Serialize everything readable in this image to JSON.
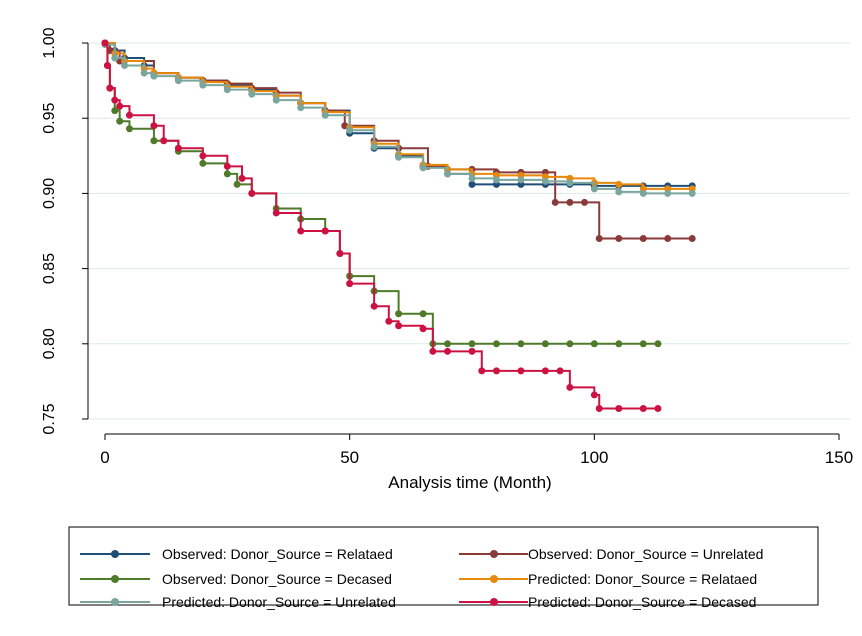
{
  "chart_data": {
    "type": "line",
    "title": "",
    "xlabel": "Analysis time (Month)",
    "ylabel": "",
    "xlim": [
      0,
      150
    ],
    "ylim": [
      0.75,
      1.0
    ],
    "x_ticks": [
      "0",
      "50",
      "100",
      "150"
    ],
    "y_ticks": [
      "0.75",
      "0.80",
      "0.85",
      "0.90",
      "0.95",
      "1.00"
    ],
    "grid": "horizontal",
    "legend_position": "bottom",
    "series": [
      {
        "name": "Observed: Donor_Source = Relataed",
        "color": "#1f4e79",
        "step": true,
        "x": [
          0,
          2,
          4,
          8,
          10,
          15,
          20,
          25,
          30,
          35,
          40,
          45,
          50,
          55,
          60,
          65,
          70,
          75,
          80,
          85,
          90,
          95,
          100,
          105,
          110,
          115,
          120
        ],
        "y": [
          1.0,
          0.995,
          0.99,
          0.985,
          0.98,
          0.977,
          0.975,
          0.972,
          0.969,
          0.965,
          0.96,
          0.955,
          0.94,
          0.93,
          0.925,
          0.918,
          0.913,
          0.906,
          0.906,
          0.906,
          0.906,
          0.906,
          0.905,
          0.905,
          0.905,
          0.905,
          0.905
        ]
      },
      {
        "name": "Observed: Donor_Source = Unrelated",
        "color": "#8b3a3a",
        "step": true,
        "x": [
          0,
          1,
          3,
          10,
          15,
          20,
          25,
          30,
          35,
          40,
          45,
          49,
          55,
          60,
          66,
          70,
          75,
          80,
          85,
          90,
          92,
          95,
          98,
          101,
          105,
          110,
          115,
          120
        ],
        "y": [
          1.0,
          0.995,
          0.988,
          0.98,
          0.977,
          0.975,
          0.973,
          0.97,
          0.967,
          0.96,
          0.955,
          0.945,
          0.935,
          0.93,
          0.918,
          0.916,
          0.916,
          0.914,
          0.914,
          0.914,
          0.894,
          0.894,
          0.894,
          0.87,
          0.87,
          0.87,
          0.87,
          0.87
        ]
      },
      {
        "name": "Observed: Donor_Source = Decased",
        "color": "#4e7a2a",
        "step": true,
        "x": [
          0,
          0.5,
          1,
          2,
          3,
          5,
          10,
          15,
          20,
          25,
          27,
          30,
          35,
          40,
          45,
          48,
          50,
          55,
          60,
          65,
          67,
          70,
          75,
          80,
          85,
          90,
          95,
          100,
          105,
          110,
          113
        ],
        "y": [
          1.0,
          0.985,
          0.97,
          0.955,
          0.948,
          0.943,
          0.935,
          0.928,
          0.92,
          0.913,
          0.906,
          0.9,
          0.89,
          0.883,
          0.875,
          0.86,
          0.845,
          0.835,
          0.82,
          0.82,
          0.8,
          0.8,
          0.8,
          0.8,
          0.8,
          0.8,
          0.8,
          0.8,
          0.8,
          0.8,
          0.8
        ]
      },
      {
        "name": "Predicted: Donor_Source = Relataed",
        "color": "#e8890c",
        "step": true,
        "x": [
          0,
          2,
          4,
          8,
          10,
          15,
          20,
          25,
          30,
          35,
          40,
          45,
          50,
          55,
          60,
          65,
          70,
          75,
          80,
          85,
          90,
          95,
          100,
          105,
          110,
          115,
          120
        ],
        "y": [
          1.0,
          0.993,
          0.988,
          0.983,
          0.98,
          0.977,
          0.974,
          0.971,
          0.968,
          0.965,
          0.96,
          0.954,
          0.944,
          0.933,
          0.926,
          0.919,
          0.916,
          0.913,
          0.912,
          0.912,
          0.911,
          0.91,
          0.907,
          0.906,
          0.903,
          0.903,
          0.903
        ]
      },
      {
        "name": "Predicted: Donor_Source = Unrelated",
        "color": "#7aa69e",
        "step": true,
        "x": [
          0,
          2,
          4,
          8,
          10,
          15,
          20,
          25,
          30,
          35,
          40,
          45,
          50,
          55,
          60,
          65,
          70,
          75,
          80,
          85,
          90,
          95,
          100,
          105,
          110,
          115,
          120
        ],
        "y": [
          0.999,
          0.99,
          0.985,
          0.98,
          0.978,
          0.975,
          0.972,
          0.969,
          0.966,
          0.962,
          0.957,
          0.952,
          0.942,
          0.931,
          0.924,
          0.917,
          0.913,
          0.91,
          0.909,
          0.909,
          0.908,
          0.907,
          0.903,
          0.901,
          0.9,
          0.9,
          0.9
        ]
      },
      {
        "name": "Predicted: Donor_Source = Decased",
        "color": "#cc1243",
        "step": true,
        "x": [
          0,
          0.5,
          1,
          2,
          3,
          5,
          10,
          12,
          15,
          20,
          25,
          28,
          30,
          35,
          40,
          45,
          48,
          50,
          55,
          58,
          60,
          65,
          67,
          70,
          75,
          77,
          80,
          85,
          90,
          93,
          95,
          100,
          101,
          105,
          110,
          113
        ],
        "y": [
          1.0,
          0.985,
          0.97,
          0.962,
          0.958,
          0.952,
          0.945,
          0.935,
          0.93,
          0.925,
          0.918,
          0.91,
          0.9,
          0.887,
          0.875,
          0.875,
          0.86,
          0.84,
          0.825,
          0.815,
          0.812,
          0.81,
          0.795,
          0.795,
          0.795,
          0.782,
          0.782,
          0.782,
          0.782,
          0.782,
          0.771,
          0.766,
          0.757,
          0.757,
          0.757,
          0.757
        ]
      }
    ]
  }
}
